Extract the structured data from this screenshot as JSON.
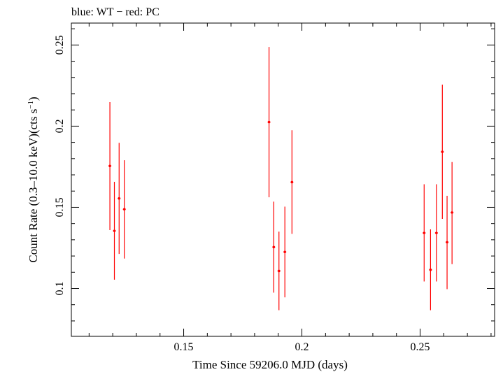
{
  "chart_data": {
    "type": "scatter",
    "title": "blue: WT − red: PC",
    "xlabel": "Time Since 59206.0 MJD (days)",
    "ylabel_main": "Count Rate (0.3–10.0 keV)(cts s",
    "ylabel_sup": "−1",
    "ylabel_close": ")",
    "xlim": [
      0.1025,
      0.2815
    ],
    "ylim": [
      0.0705,
      0.2635
    ],
    "x_ticks": [
      {
        "value": 0.15,
        "label": "0.15"
      },
      {
        "value": 0.2,
        "label": "0.2"
      },
      {
        "value": 0.25,
        "label": "0.25"
      }
    ],
    "y_ticks": [
      {
        "value": 0.1,
        "label": "0.1"
      },
      {
        "value": 0.15,
        "label": "0.15"
      },
      {
        "value": 0.2,
        "label": "0.2"
      },
      {
        "value": 0.25,
        "label": "0.25"
      }
    ],
    "grid": false,
    "series": [
      {
        "name": "PC",
        "color": "#ff0000",
        "points": [
          {
            "x": 0.1188,
            "y": 0.1755,
            "xerr": 0.0006,
            "ylo": 0.136,
            "yhi": 0.2148
          },
          {
            "x": 0.1207,
            "y": 0.1355,
            "xerr": 0.0006,
            "ylo": 0.1054,
            "yhi": 0.1657
          },
          {
            "x": 0.1227,
            "y": 0.1555,
            "xerr": 0.0006,
            "ylo": 0.1213,
            "yhi": 0.1897
          },
          {
            "x": 0.1249,
            "y": 0.1488,
            "xerr": 0.0006,
            "ylo": 0.1184,
            "yhi": 0.179
          },
          {
            "x": 0.1861,
            "y": 0.2025,
            "xerr": 0.0006,
            "ylo": 0.1562,
            "yhi": 0.2488
          },
          {
            "x": 0.1881,
            "y": 0.1255,
            "xerr": 0.0006,
            "ylo": 0.0974,
            "yhi": 0.1535
          },
          {
            "x": 0.1903,
            "y": 0.1108,
            "xerr": 0.0006,
            "ylo": 0.0866,
            "yhi": 0.135
          },
          {
            "x": 0.1928,
            "y": 0.1225,
            "xerr": 0.0006,
            "ylo": 0.0945,
            "yhi": 0.1504
          },
          {
            "x": 0.1958,
            "y": 0.1655,
            "xerr": 0.0006,
            "ylo": 0.1336,
            "yhi": 0.1975
          },
          {
            "x": 0.2517,
            "y": 0.1342,
            "xerr": 0.0006,
            "ylo": 0.1043,
            "yhi": 0.1642
          },
          {
            "x": 0.2544,
            "y": 0.1115,
            "xerr": 0.0006,
            "ylo": 0.0866,
            "yhi": 0.1364
          },
          {
            "x": 0.2569,
            "y": 0.1342,
            "xerr": 0.0006,
            "ylo": 0.1043,
            "yhi": 0.1642
          },
          {
            "x": 0.2594,
            "y": 0.1842,
            "xerr": 0.0006,
            "ylo": 0.1429,
            "yhi": 0.2256
          },
          {
            "x": 0.2614,
            "y": 0.1285,
            "xerr": 0.0006,
            "ylo": 0.0996,
            "yhi": 0.1571
          },
          {
            "x": 0.2635,
            "y": 0.1468,
            "xerr": 0.0006,
            "ylo": 0.115,
            "yhi": 0.1779
          }
        ]
      }
    ]
  }
}
